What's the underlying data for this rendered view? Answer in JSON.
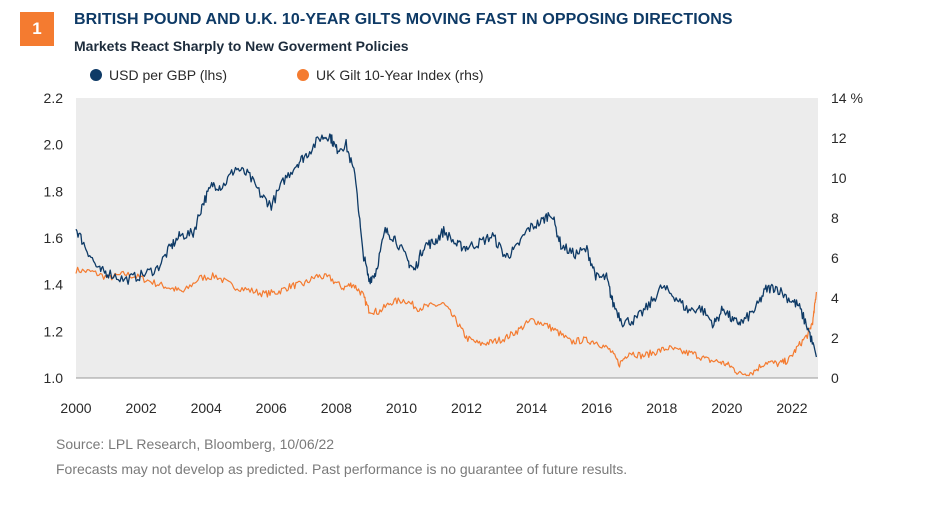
{
  "badge": "1",
  "title": "BRITISH POUND AND U.K. 10-YEAR GILTS MOVING FAST IN OPPOSING DIRECTIONS",
  "subtitle": "Markets React Sharply to New Goverment Policies",
  "footer": {
    "source": "Source: LPL Research,  Bloomberg,  10/06/22",
    "disclaimer": "Forecasts may not develop as predicted. Past performance is no guarantee of future results."
  },
  "colors": {
    "usd_gbp": "#0e3a66",
    "gilt": "#f47b30",
    "plot_bg": "#ececec",
    "axis": "#999999"
  },
  "chart_data": {
    "type": "line",
    "legend_position": "top-left",
    "grid": false,
    "x_range": [
      2000.0,
      2022.8
    ],
    "x_ticks": [
      "2000",
      "2002",
      "2004",
      "2006",
      "2008",
      "2010",
      "2012",
      "2014",
      "2016",
      "2018",
      "2020",
      "2022"
    ],
    "y_left": {
      "range": [
        1.0,
        2.2
      ],
      "ticks": [
        "1.0",
        "1.2",
        "1.4",
        "1.6",
        "1.8",
        "2.0",
        "2.2"
      ]
    },
    "y_right": {
      "range": [
        0,
        14
      ],
      "ticks": [
        "0",
        "2",
        "4",
        "6",
        "8",
        "10",
        "12",
        "14 %"
      ]
    },
    "series": [
      {
        "name": "USD per GBP (lhs)",
        "axis": "left",
        "x": [
          2000.0,
          2000.3,
          2000.7,
          2001.0,
          2001.5,
          2002.0,
          2002.5,
          2002.9,
          2003.2,
          2003.6,
          2003.9,
          2004.2,
          2004.5,
          2004.9,
          2005.3,
          2005.7,
          2006.0,
          2006.4,
          2006.8,
          2007.1,
          2007.5,
          2007.8,
          2008.0,
          2008.3,
          2008.6,
          2008.8,
          2009.0,
          2009.2,
          2009.5,
          2009.8,
          2010.2,
          2010.4,
          2010.7,
          2011.0,
          2011.3,
          2011.7,
          2012.0,
          2012.4,
          2012.8,
          2013.2,
          2013.5,
          2013.9,
          2014.3,
          2014.6,
          2014.9,
          2015.3,
          2015.7,
          2016.0,
          2016.3,
          2016.5,
          2016.8,
          2017.2,
          2017.6,
          2018.0,
          2018.4,
          2018.8,
          2019.2,
          2019.6,
          2019.9,
          2020.2,
          2020.5,
          2020.9,
          2021.2,
          2021.5,
          2021.9,
          2022.2,
          2022.5,
          2022.75
        ],
        "values": [
          1.64,
          1.56,
          1.46,
          1.45,
          1.42,
          1.44,
          1.47,
          1.56,
          1.61,
          1.62,
          1.75,
          1.83,
          1.82,
          1.9,
          1.87,
          1.78,
          1.74,
          1.85,
          1.92,
          1.96,
          2.03,
          2.04,
          1.98,
          2.0,
          1.85,
          1.55,
          1.42,
          1.45,
          1.63,
          1.6,
          1.5,
          1.46,
          1.57,
          1.58,
          1.63,
          1.57,
          1.56,
          1.58,
          1.61,
          1.52,
          1.55,
          1.64,
          1.67,
          1.71,
          1.57,
          1.53,
          1.55,
          1.43,
          1.43,
          1.32,
          1.24,
          1.25,
          1.31,
          1.39,
          1.35,
          1.29,
          1.3,
          1.23,
          1.3,
          1.24,
          1.24,
          1.3,
          1.38,
          1.39,
          1.34,
          1.31,
          1.21,
          1.09
        ]
      },
      {
        "name": "UK Gilt 10-Year Index (rhs)",
        "axis": "right",
        "x": [
          2000.0,
          2000.5,
          2001.0,
          2001.5,
          2002.0,
          2002.5,
          2002.9,
          2003.3,
          2003.8,
          2004.3,
          2004.8,
          2005.3,
          2005.8,
          2006.2,
          2006.6,
          2007.0,
          2007.4,
          2007.8,
          2008.2,
          2008.5,
          2008.8,
          2009.0,
          2009.3,
          2009.7,
          2010.1,
          2010.5,
          2010.9,
          2011.3,
          2011.7,
          2012.0,
          2012.4,
          2012.8,
          2013.2,
          2013.6,
          2014.0,
          2014.4,
          2014.8,
          2015.2,
          2015.6,
          2016.0,
          2016.4,
          2016.7,
          2017.0,
          2017.4,
          2017.8,
          2018.2,
          2018.6,
          2019.0,
          2019.4,
          2019.8,
          2020.1,
          2020.4,
          2020.8,
          2021.2,
          2021.6,
          2021.9,
          2022.2,
          2022.5,
          2022.65,
          2022.75
        ],
        "values": [
          5.4,
          5.3,
          5.0,
          5.2,
          5.0,
          4.7,
          4.5,
          4.3,
          5.0,
          5.1,
          4.6,
          4.4,
          4.2,
          4.3,
          4.6,
          4.7,
          5.1,
          5.0,
          4.5,
          4.7,
          4.2,
          3.4,
          3.3,
          3.8,
          3.9,
          3.5,
          3.6,
          3.7,
          2.8,
          2.0,
          1.7,
          1.8,
          2.0,
          2.4,
          2.9,
          2.7,
          2.3,
          1.8,
          1.9,
          1.8,
          1.4,
          0.7,
          1.3,
          1.1,
          1.3,
          1.5,
          1.3,
          1.2,
          0.9,
          0.8,
          0.6,
          0.2,
          0.3,
          0.8,
          0.7,
          0.9,
          1.6,
          2.2,
          2.9,
          4.3
        ]
      }
    ]
  }
}
